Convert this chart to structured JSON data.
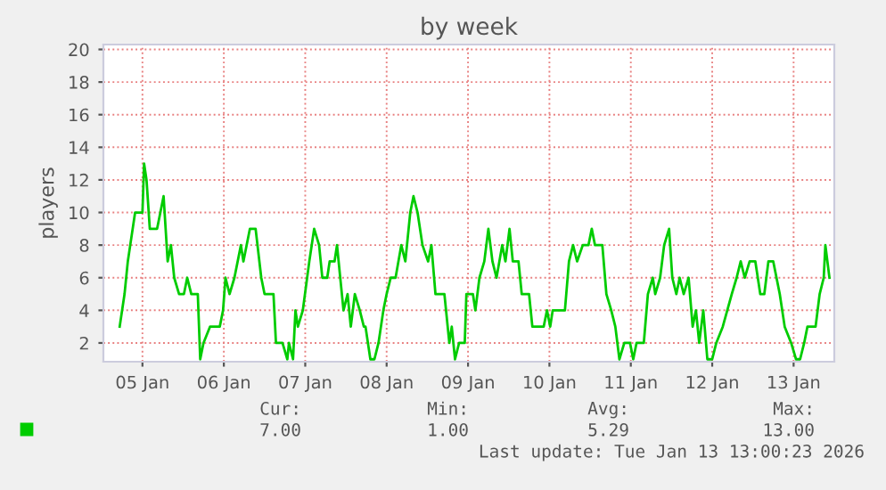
{
  "chart_data": {
    "type": "line",
    "title": "by week",
    "ylabel": "players",
    "x": [
      "2026-01-04T17:17",
      "2026-01-04T18:43",
      "2026-01-04T19:41",
      "2026-01-04T20:24",
      "2026-01-04T21:50",
      "2026-01-05T00:00",
      "2026-01-05T00:29",
      "2026-01-05T01:12",
      "2026-01-05T02:10",
      "2026-01-05T04:19",
      "2026-01-05T06:14",
      "2026-01-05T07:26",
      "2026-01-05T08:24",
      "2026-01-05T09:22",
      "2026-01-05T10:48",
      "2026-01-05T12:14",
      "2026-01-05T13:12",
      "2026-01-05T14:24",
      "2026-01-05T16:19",
      "2026-01-05T17:02",
      "2026-01-05T18:00",
      "2026-01-05T19:55",
      "2026-01-05T22:48",
      "2026-01-05T23:46",
      "2026-01-06T00:29",
      "2026-01-06T01:41",
      "2026-01-06T03:07",
      "2026-01-06T05:02",
      "2026-01-06T05:46",
      "2026-01-06T07:41",
      "2026-01-06T09:22",
      "2026-01-06T11:02",
      "2026-01-06T12:00",
      "2026-01-06T14:38",
      "2026-01-06T15:22",
      "2026-01-06T17:17",
      "2026-01-06T18:43",
      "2026-01-06T19:12",
      "2026-01-06T20:24",
      "2026-01-06T21:07",
      "2026-01-06T21:50",
      "2026-01-06T23:17",
      "2026-01-07T01:12",
      "2026-01-07T02:38",
      "2026-01-07T04:05",
      "2026-01-07T05:02",
      "2026-01-07T06:29",
      "2026-01-07T07:12",
      "2026-01-07T08:38",
      "2026-01-07T09:22",
      "2026-01-07T10:19",
      "2026-01-07T11:17",
      "2026-01-07T12:29",
      "2026-01-07T13:26",
      "2026-01-07T14:38",
      "2026-01-07T16:05",
      "2026-01-07T17:17",
      "2026-01-07T17:46",
      "2026-01-07T19:12",
      "2026-01-07T20:24",
      "2026-01-07T21:36",
      "2026-01-07T23:02",
      "2026-01-08T00:00",
      "2026-01-08T01:12",
      "2026-01-08T02:38",
      "2026-01-08T04:19",
      "2026-01-08T05:31",
      "2026-01-08T06:58",
      "2026-01-08T07:55",
      "2026-01-08T09:07",
      "2026-01-08T10:34",
      "2026-01-08T12:14",
      "2026-01-08T13:12",
      "2026-01-08T14:24",
      "2026-01-08T17:02",
      "2026-01-08T18:29",
      "2026-01-08T19:12",
      "2026-01-08T20:10",
      "2026-01-08T21:22",
      "2026-01-08T23:02",
      "2026-01-08T23:31",
      "2026-01-09T01:26",
      "2026-01-09T02:10",
      "2026-01-09T03:22",
      "2026-01-09T04:48",
      "2026-01-09T06:00",
      "2026-01-09T07:12",
      "2026-01-09T08:24",
      "2026-01-09T10:05",
      "2026-01-09T11:02",
      "2026-01-09T12:14",
      "2026-01-09T13:12",
      "2026-01-09T14:53",
      "2026-01-09T15:50",
      "2026-01-09T18:00",
      "2026-01-09T18:58",
      "2026-01-09T22:19",
      "2026-01-09T23:17",
      "2026-01-10T00:14",
      "2026-01-10T00:58",
      "2026-01-10T04:34",
      "2026-01-10T05:46",
      "2026-01-10T06:58",
      "2026-01-10T08:10",
      "2026-01-10T09:50",
      "2026-01-10T11:31",
      "2026-01-10T12:29",
      "2026-01-10T13:26",
      "2026-01-10T15:36",
      "2026-01-10T16:48",
      "2026-01-10T18:14",
      "2026-01-10T19:26",
      "2026-01-10T20:38",
      "2026-01-10T22:05",
      "2026-01-10T23:46",
      "2026-01-11T00:43",
      "2026-01-11T01:41",
      "2026-01-11T03:50",
      "2026-01-11T05:02",
      "2026-01-11T06:29",
      "2026-01-11T07:12",
      "2026-01-11T08:38",
      "2026-01-11T09:50",
      "2026-01-11T11:17",
      "2026-01-11T12:14",
      "2026-01-11T13:26",
      "2026-01-11T14:24",
      "2026-01-11T15:36",
      "2026-01-11T17:02",
      "2026-01-11T18:14",
      "2026-01-11T19:12",
      "2026-01-11T20:10",
      "2026-01-11T21:22",
      "2026-01-11T22:34",
      "2026-01-12T00:00",
      "2026-01-12T01:12",
      "2026-01-12T03:07",
      "2026-01-12T05:46",
      "2026-01-12T07:12",
      "2026-01-12T08:24",
      "2026-01-12T09:36",
      "2026-01-12T11:02",
      "2026-01-12T12:43",
      "2026-01-12T14:10",
      "2026-01-12T15:22",
      "2026-01-12T16:34",
      "2026-01-12T18:00",
      "2026-01-12T19:55",
      "2026-01-12T21:22",
      "2026-01-12T23:17",
      "2026-01-13T00:43",
      "2026-01-13T01:55",
      "2026-01-13T03:07",
      "2026-01-13T04:05",
      "2026-01-13T06:29",
      "2026-01-13T07:41",
      "2026-01-13T08:53",
      "2026-01-13T09:22",
      "2026-01-13T10:34"
    ],
    "series": [
      {
        "color": "#00cc00",
        "values": [
          3,
          5,
          7,
          8,
          10,
          10,
          13,
          12,
          9,
          9,
          11,
          7,
          8,
          6,
          5,
          5,
          6,
          5,
          5,
          1,
          2,
          3,
          3,
          4,
          6,
          5,
          6,
          8,
          7,
          9,
          9,
          6,
          5,
          5,
          2,
          2,
          1,
          2,
          1,
          4,
          3,
          4,
          7,
          9,
          8,
          6,
          6,
          7,
          7,
          8,
          6,
          4,
          5,
          3,
          5,
          4,
          3,
          3,
          1,
          1,
          2,
          4,
          5,
          6,
          6,
          8,
          7,
          10,
          11,
          10,
          8,
          7,
          8,
          5,
          5,
          2,
          3,
          1,
          2,
          2,
          5,
          5,
          4,
          6,
          7,
          9,
          7,
          6,
          8,
          7,
          9,
          7,
          7,
          5,
          5,
          3,
          3,
          4,
          3,
          4,
          4,
          7,
          8,
          7,
          8,
          8,
          9,
          8,
          8,
          5,
          4,
          3,
          1,
          2,
          2,
          1,
          2,
          2,
          5,
          6,
          5,
          6,
          8,
          9,
          6,
          5,
          6,
          5,
          6,
          3,
          4,
          2,
          4,
          1,
          1,
          2,
          3,
          5,
          6,
          7,
          6,
          7,
          7,
          5,
          5,
          7,
          7,
          5,
          3,
          2,
          1,
          1,
          2,
          3,
          3,
          5,
          6,
          8,
          6
        ]
      }
    ],
    "xlim": [
      "2026-01-04T12:29",
      "2026-01-13T12:00"
    ],
    "xticks": [
      {
        "value": "2026-01-05",
        "label": "05 Jan"
      },
      {
        "value": "2026-01-06",
        "label": "06 Jan"
      },
      {
        "value": "2026-01-07",
        "label": "07 Jan"
      },
      {
        "value": "2026-01-08",
        "label": "08 Jan"
      },
      {
        "value": "2026-01-09",
        "label": "09 Jan"
      },
      {
        "value": "2026-01-10",
        "label": "10 Jan"
      },
      {
        "value": "2026-01-11",
        "label": "11 Jan"
      },
      {
        "value": "2026-01-12",
        "label": "12 Jan"
      },
      {
        "value": "2026-01-13",
        "label": "13 Jan"
      }
    ],
    "ylim": [
      0.85,
      20.3
    ],
    "yticks": [
      2,
      4,
      6,
      8,
      10,
      12,
      14,
      16,
      18,
      20
    ],
    "grid": true,
    "annotations": [
      "Cur:",
      "7.00",
      "Min:",
      "1.00",
      "Avg:",
      "5.29",
      "Max:",
      "13.00",
      "Last update: Tue Jan 13 13:00:23 2026"
    ]
  }
}
